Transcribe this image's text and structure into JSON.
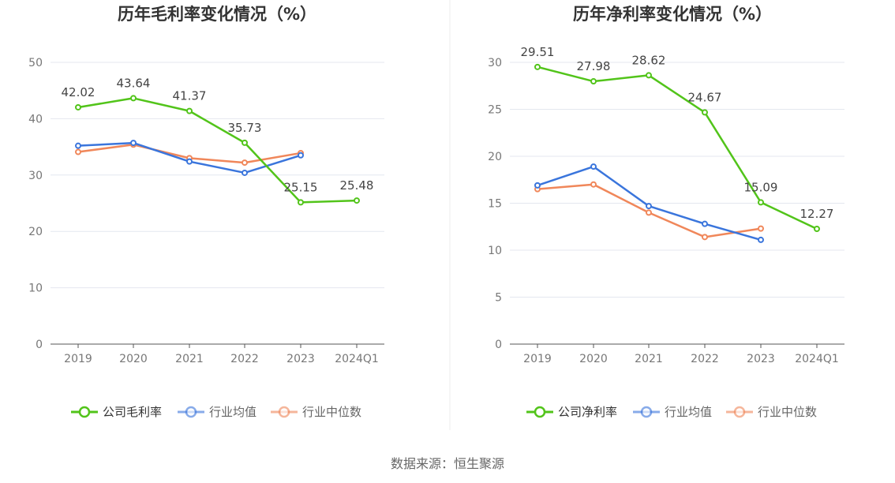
{
  "footer": {
    "source": "数据来源：恒生聚源"
  },
  "colors": {
    "company": "#52c41a",
    "avg": "#3a75dc",
    "median": "#f0875a"
  },
  "chart_data": [
    {
      "type": "line",
      "title": "历年毛利率变化情况（%）",
      "categories": [
        "2019",
        "2020",
        "2021",
        "2022",
        "2023",
        "2024Q1"
      ],
      "ylim": [
        0,
        50
      ],
      "yticks": [
        0,
        10,
        20,
        30,
        40,
        50
      ],
      "grid": true,
      "legend": "bottom",
      "series": [
        {
          "name": "公司毛利率",
          "key": "company",
          "labeled": true,
          "values": [
            42.02,
            43.64,
            41.37,
            35.73,
            25.15,
            25.48
          ],
          "labels": [
            "42.02",
            "43.64",
            "41.37",
            "35.73",
            "25.15",
            "25.48"
          ]
        },
        {
          "name": "行业均值",
          "key": "avg",
          "labeled": false,
          "values": [
            35.2,
            35.7,
            32.4,
            30.4,
            33.5,
            null
          ]
        },
        {
          "name": "行业中位数",
          "key": "median",
          "labeled": false,
          "values": [
            34.1,
            35.4,
            33.0,
            32.2,
            33.9,
            null
          ]
        }
      ]
    },
    {
      "type": "line",
      "title": "历年净利率变化情况（%）",
      "categories": [
        "2019",
        "2020",
        "2021",
        "2022",
        "2023",
        "2024Q1"
      ],
      "ylim": [
        0,
        30
      ],
      "yticks": [
        0,
        5,
        10,
        15,
        20,
        25,
        30
      ],
      "grid": true,
      "legend": "bottom",
      "series": [
        {
          "name": "公司净利率",
          "key": "company",
          "labeled": true,
          "values": [
            29.51,
            27.98,
            28.62,
            24.67,
            15.09,
            12.27
          ],
          "labels": [
            "29.51",
            "27.98",
            "28.62",
            "24.67",
            "15.09",
            "12.27"
          ]
        },
        {
          "name": "行业均值",
          "key": "avg",
          "labeled": false,
          "values": [
            16.9,
            18.9,
            14.7,
            12.8,
            11.1,
            null
          ]
        },
        {
          "name": "行业中位数",
          "key": "median",
          "labeled": false,
          "values": [
            16.5,
            17.0,
            14.0,
            11.4,
            12.3,
            null
          ]
        }
      ]
    }
  ]
}
